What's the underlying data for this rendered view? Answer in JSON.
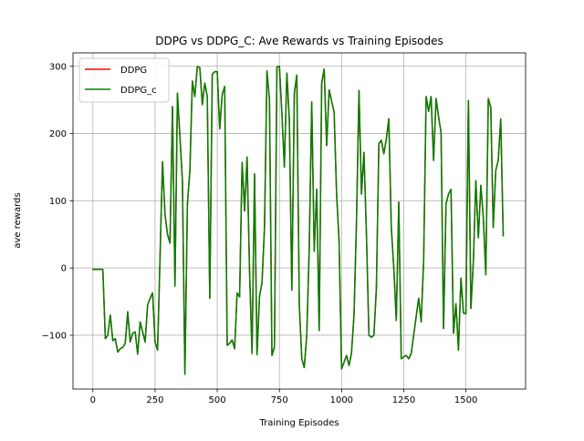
{
  "chart_data": {
    "type": "line",
    "title": "DDPG vs DDPG_C: Ave Rewards vs Training Episodes",
    "xlabel": "Training Episodes",
    "ylabel": "ave rewards",
    "xlim": [
      -80,
      1740
    ],
    "ylim": [
      -180,
      320
    ],
    "xticks": [
      0,
      250,
      500,
      750,
      1000,
      1250,
      1500
    ],
    "yticks": [
      -100,
      0,
      100,
      200,
      300
    ],
    "xtick_labels": [
      "0",
      "250",
      "500",
      "750",
      "1000",
      "1250",
      "1500"
    ],
    "ytick_labels": [
      "−100",
      "0",
      "100",
      "200",
      "300"
    ],
    "grid": true,
    "legend_position": "top-left",
    "series": [
      {
        "name": "DDPG",
        "color": "#ff0000",
        "x": [
          0,
          10,
          20,
          30,
          40,
          50,
          60,
          70,
          80,
          90,
          100,
          110,
          120,
          130,
          140,
          150,
          160,
          170,
          180,
          190,
          200,
          210,
          220,
          230,
          240,
          250,
          260,
          270,
          280,
          290,
          300,
          310,
          320,
          330,
          340,
          350,
          360,
          370,
          380,
          390,
          400,
          410,
          420,
          430,
          440,
          450,
          460,
          470,
          480,
          490,
          500,
          510,
          520,
          530,
          540,
          550,
          560,
          570,
          580,
          590,
          600,
          610,
          620,
          630,
          640,
          650,
          660,
          670,
          680,
          690,
          700,
          710,
          720,
          730,
          740,
          750,
          760,
          770,
          780,
          790,
          800,
          810,
          820,
          830,
          840,
          850,
          860,
          870,
          880,
          890,
          900,
          910,
          920,
          930,
          940,
          950,
          960,
          970,
          980,
          990,
          1000,
          1010,
          1020,
          1030,
          1040,
          1050,
          1060,
          1070,
          1080,
          1090,
          1100,
          1110,
          1120,
          1130,
          1140,
          1150,
          1160,
          1170,
          1180,
          1190,
          1200,
          1210,
          1220,
          1230,
          1240,
          1250,
          1260,
          1270,
          1280,
          1290,
          1300,
          1310,
          1320,
          1330,
          1340,
          1350,
          1360,
          1370,
          1380,
          1390,
          1400,
          1410,
          1420,
          1430,
          1440,
          1450,
          1460,
          1470,
          1480,
          1490,
          1500,
          1510,
          1520,
          1530,
          1540,
          1550,
          1560,
          1570,
          1580,
          1590,
          1600,
          1610,
          1620,
          1630,
          1640,
          1650
        ],
        "y": [
          -2,
          -2,
          -2,
          -2,
          -2,
          -105,
          -100,
          -70,
          -108,
          -105,
          -125,
          -120,
          -118,
          -112,
          -65,
          -110,
          -97,
          -95,
          -128,
          -80,
          -95,
          -110,
          -55,
          -45,
          -37,
          -110,
          -122,
          15,
          158,
          80,
          50,
          37,
          240,
          -27,
          260,
          195,
          130,
          -158,
          95,
          145,
          278,
          255,
          300,
          298,
          243,
          275,
          255,
          -45,
          288,
          292,
          292,
          207,
          258,
          270,
          -115,
          -112,
          -107,
          -120,
          -37,
          -43,
          157,
          85,
          165,
          -5,
          -127,
          140,
          -129,
          -42,
          -22,
          60,
          293,
          250,
          -130,
          -118,
          299,
          300,
          230,
          150,
          290,
          220,
          -33,
          260,
          287,
          -55,
          -135,
          -148,
          -100,
          30,
          247,
          25,
          117,
          -93,
          275,
          296,
          182,
          265,
          248,
          232,
          110,
          40,
          -150,
          -140,
          -130,
          -145,
          -126,
          -70,
          70,
          264,
          110,
          172,
          50,
          -100,
          -103,
          -100,
          -30,
          185,
          190,
          170,
          192,
          222,
          60,
          0,
          -78,
          98,
          -135,
          -132,
          -130,
          -135,
          -127,
          -100,
          -72,
          -45,
          -80,
          10,
          255,
          233,
          255,
          160,
          252,
          225,
          202,
          -90,
          95,
          110,
          117,
          -97,
          -53,
          -122,
          -15,
          -67,
          -68,
          249,
          -60,
          10,
          130,
          45,
          123,
          75,
          -10,
          252,
          239,
          60,
          145,
          160,
          222,
          48
        ]
      },
      {
        "name": "DDPG_c",
        "color": "#008000",
        "x": [
          0,
          10,
          20,
          30,
          40,
          50,
          60,
          70,
          80,
          90,
          100,
          110,
          120,
          130,
          140,
          150,
          160,
          170,
          180,
          190,
          200,
          210,
          220,
          230,
          240,
          250,
          260,
          270,
          280,
          290,
          300,
          310,
          320,
          330,
          340,
          350,
          360,
          370,
          380,
          390,
          400,
          410,
          420,
          430,
          440,
          450,
          460,
          470,
          480,
          490,
          500,
          510,
          520,
          530,
          540,
          550,
          560,
          570,
          580,
          590,
          600,
          610,
          620,
          630,
          640,
          650,
          660,
          670,
          680,
          690,
          700,
          710,
          720,
          730,
          740,
          750,
          760,
          770,
          780,
          790,
          800,
          810,
          820,
          830,
          840,
          850,
          860,
          870,
          880,
          890,
          900,
          910,
          920,
          930,
          940,
          950,
          960,
          970,
          980,
          990,
          1000,
          1010,
          1020,
          1030,
          1040,
          1050,
          1060,
          1070,
          1080,
          1090,
          1100,
          1110,
          1120,
          1130,
          1140,
          1150,
          1160,
          1170,
          1180,
          1190,
          1200,
          1210,
          1220,
          1230,
          1240,
          1250,
          1260,
          1270,
          1280,
          1290,
          1300,
          1310,
          1320,
          1330,
          1340,
          1350,
          1360,
          1370,
          1380,
          1390,
          1400,
          1410,
          1420,
          1430,
          1440,
          1450,
          1460,
          1470,
          1480,
          1490,
          1500,
          1510,
          1520,
          1530,
          1540,
          1550,
          1560,
          1570,
          1580,
          1590,
          1600,
          1610,
          1620,
          1630,
          1640,
          1650
        ],
        "y": [
          -2,
          -2,
          -2,
          -2,
          -2,
          -105,
          -100,
          -70,
          -108,
          -105,
          -125,
          -120,
          -118,
          -112,
          -65,
          -110,
          -97,
          -95,
          -128,
          -80,
          -95,
          -110,
          -55,
          -45,
          -37,
          -110,
          -122,
          15,
          158,
          80,
          50,
          37,
          240,
          -27,
          260,
          195,
          130,
          -158,
          95,
          145,
          278,
          255,
          300,
          298,
          243,
          275,
          255,
          -45,
          288,
          292,
          292,
          207,
          258,
          270,
          -115,
          -112,
          -107,
          -120,
          -37,
          -43,
          157,
          85,
          165,
          -5,
          -127,
          140,
          -129,
          -42,
          -22,
          60,
          293,
          250,
          -130,
          -118,
          299,
          300,
          230,
          150,
          290,
          220,
          -33,
          260,
          287,
          -55,
          -135,
          -148,
          -100,
          30,
          247,
          25,
          117,
          -93,
          275,
          296,
          182,
          265,
          248,
          232,
          110,
          40,
          -150,
          -140,
          -130,
          -145,
          -126,
          -70,
          70,
          264,
          110,
          172,
          50,
          -100,
          -103,
          -100,
          -30,
          185,
          190,
          170,
          192,
          222,
          60,
          0,
          -78,
          98,
          -135,
          -132,
          -130,
          -135,
          -127,
          -100,
          -72,
          -45,
          -80,
          10,
          255,
          233,
          255,
          160,
          252,
          225,
          202,
          -90,
          95,
          110,
          117,
          -97,
          -53,
          -122,
          -15,
          -67,
          -68,
          249,
          -60,
          10,
          130,
          45,
          123,
          75,
          -10,
          252,
          239,
          60,
          145,
          160,
          222,
          48
        ]
      }
    ]
  }
}
